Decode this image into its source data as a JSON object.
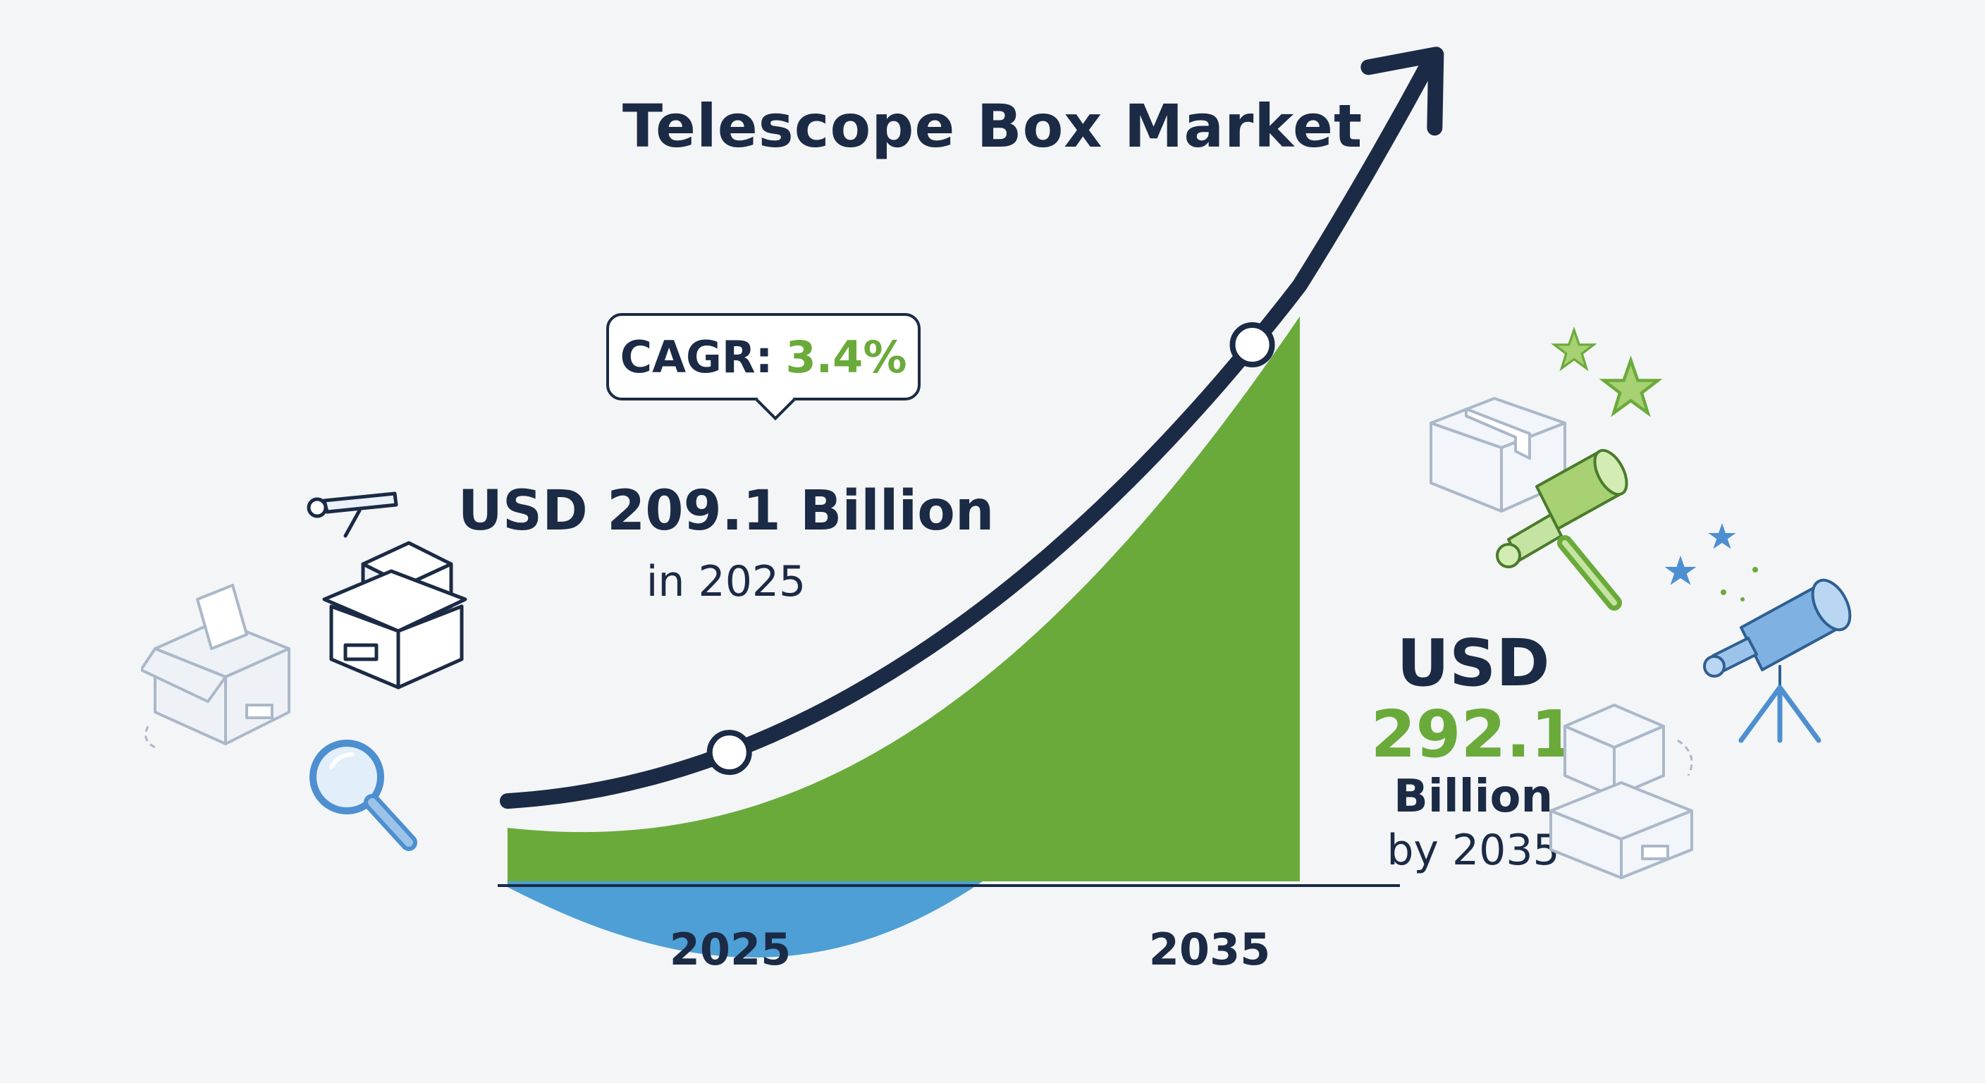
{
  "title": "Telescope Box Market",
  "cagr": {
    "label": "CAGR:",
    "value": "3.4%"
  },
  "start": {
    "value": "USD 209.1 Billion",
    "note": "in 2025"
  },
  "end": {
    "prefix": "USD",
    "value": "292.1",
    "unit": "Billion",
    "note": "by 2035"
  },
  "colors": {
    "navy": "#1b2a45",
    "green": "#6aaa3a",
    "blue_dark": "#2266a6",
    "blue_light": "#4d9fd6"
  },
  "icons": [
    "open-box-icon",
    "telescope-box-icon",
    "magnifier-icon",
    "box-icon",
    "green-telescope-icon",
    "blue-telescope-icon",
    "star-icon",
    "stacked-boxes-icon"
  ],
  "chart_data": {
    "type": "area",
    "x": [
      2025,
      2035
    ],
    "x_ticks": [
      "2025",
      "2035"
    ],
    "series": [
      {
        "values": [
          209.1,
          292.1
        ]
      }
    ],
    "cagr_percent": 3.4,
    "title": "Telescope Box Market",
    "xlabel": "",
    "ylabel": ""
  }
}
